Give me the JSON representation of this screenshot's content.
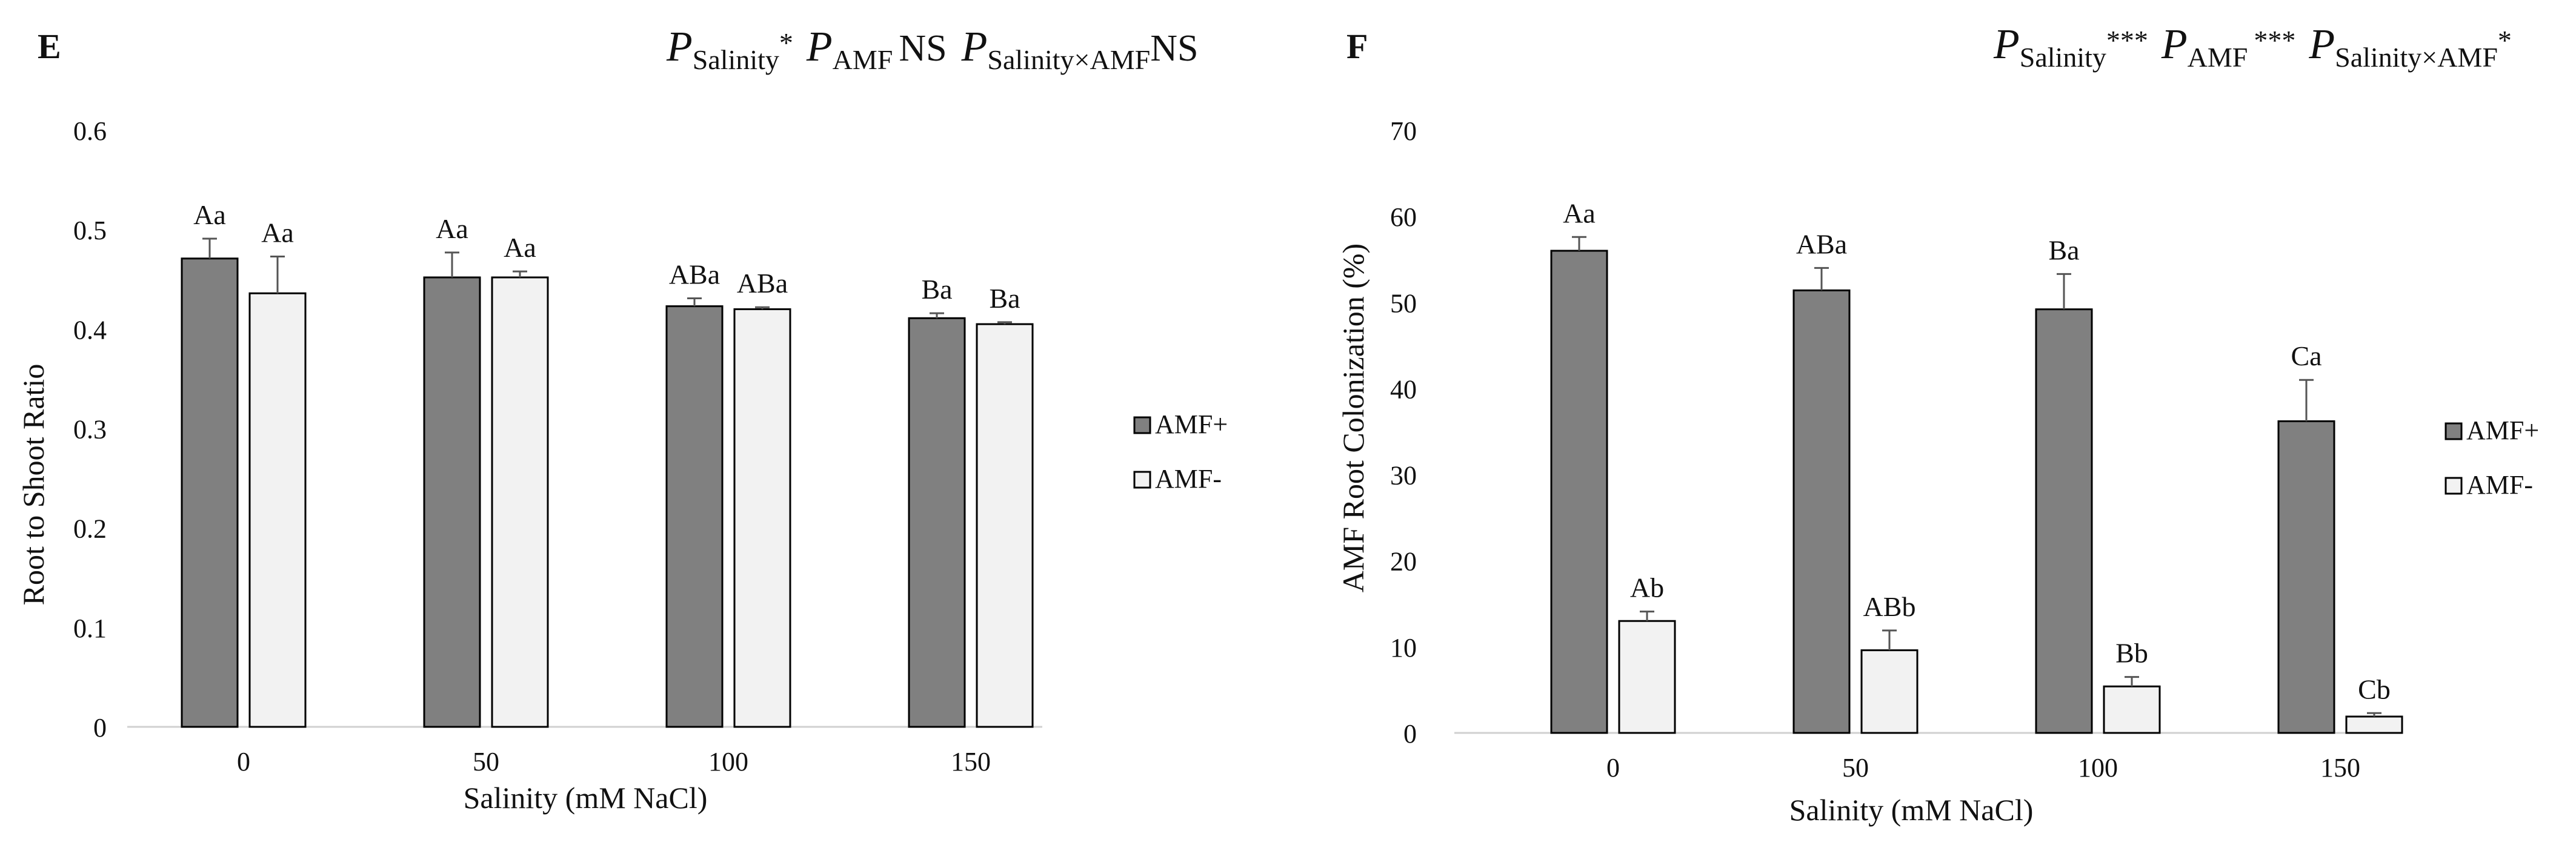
{
  "chart_data": [
    {
      "type": "bar",
      "panel_label": "E",
      "stats": {
        "salinity": "Salinity",
        "salinity_sig": "*",
        "amf": "AMF",
        "amf_sig": "NS",
        "interaction": "Salinity×AMF",
        "interaction_sig": "NS"
      },
      "xlabel": "Salinity (mM NaCl)",
      "ylabel": "Root to Shoot Ratio",
      "ylim": [
        0,
        0.6
      ],
      "yticks": [
        "0",
        "0.1",
        "0.2",
        "0.3",
        "0.4",
        "0.5",
        "0.6"
      ],
      "categories": [
        "0",
        "50",
        "100",
        "150"
      ],
      "series": [
        {
          "name": "AMF+",
          "color": "#808080",
          "values": [
            0.471,
            0.452,
            0.423,
            0.411
          ],
          "errors": [
            0.02,
            0.025,
            0.008,
            0.005
          ],
          "labels": [
            "Aa",
            "Aa",
            "ABa",
            "Ba"
          ]
        },
        {
          "name": "AMF-",
          "color": "#f2f2f2",
          "values": [
            0.436,
            0.452,
            0.42,
            0.405
          ],
          "errors": [
            0.037,
            0.006,
            0.002,
            0.002
          ],
          "labels": [
            "Aa",
            "Aa",
            "ABa",
            "Ba"
          ]
        }
      ],
      "legend_position": "right"
    },
    {
      "type": "bar",
      "panel_label": "F",
      "stats": {
        "salinity": "Salinity",
        "salinity_sig": "***",
        "amf": "AMF",
        "amf_sig": "***",
        "interaction": "Salinity×AMF",
        "interaction_sig": "*"
      },
      "xlabel": "Salinity (mM NaCl)",
      "ylabel": "AMF Root Colonization (%)",
      "ylim": [
        0,
        70
      ],
      "yticks": [
        "0",
        "10",
        "20",
        "30",
        "40",
        "50",
        "60",
        "70"
      ],
      "categories": [
        "0",
        "50",
        "100",
        "150"
      ],
      "series": [
        {
          "name": "AMF+",
          "color": "#808080",
          "values": [
            56,
            51.4,
            49.2,
            36.2
          ],
          "errors": [
            1.6,
            2.6,
            4.1,
            4.8
          ],
          "labels": [
            "Aa",
            "ABa",
            "Ba",
            "Ca"
          ]
        },
        {
          "name": "AMF-",
          "color": "#f2f2f2",
          "values": [
            13,
            9.6,
            5.4,
            1.9
          ],
          "errors": [
            1.1,
            2.3,
            1.1,
            0.4
          ],
          "labels": [
            "Ab",
            "ABb",
            "Bb",
            "Cb"
          ]
        }
      ],
      "legend_position": "right"
    }
  ]
}
